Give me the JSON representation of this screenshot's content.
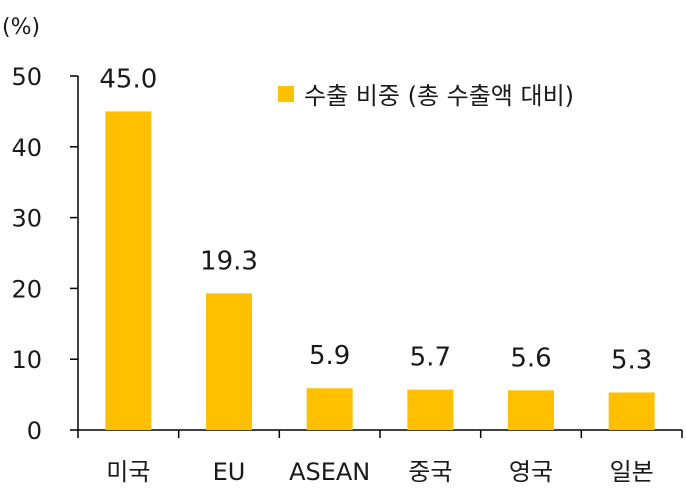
{
  "chart_data": {
    "type": "bar",
    "unit": "(%)",
    "categories": [
      "미국",
      "EU",
      "ASEAN",
      "중국",
      "영국",
      "일본"
    ],
    "series": [
      {
        "name": "수출 비중 (총 수출액 대비)",
        "values": [
          45.0,
          19.3,
          5.9,
          5.7,
          5.6,
          5.3
        ],
        "color": "#FFC000"
      }
    ],
    "data_labels": [
      "45.0",
      "19.3",
      "5.9",
      "5.7",
      "5.6",
      "5.3"
    ],
    "yticks": [
      "0",
      "10",
      "20",
      "30",
      "40",
      "50"
    ],
    "ylim": [
      0,
      50
    ],
    "title": "",
    "xlabel": "",
    "ylabel": "",
    "legend_position": "top-right",
    "grid": false
  }
}
